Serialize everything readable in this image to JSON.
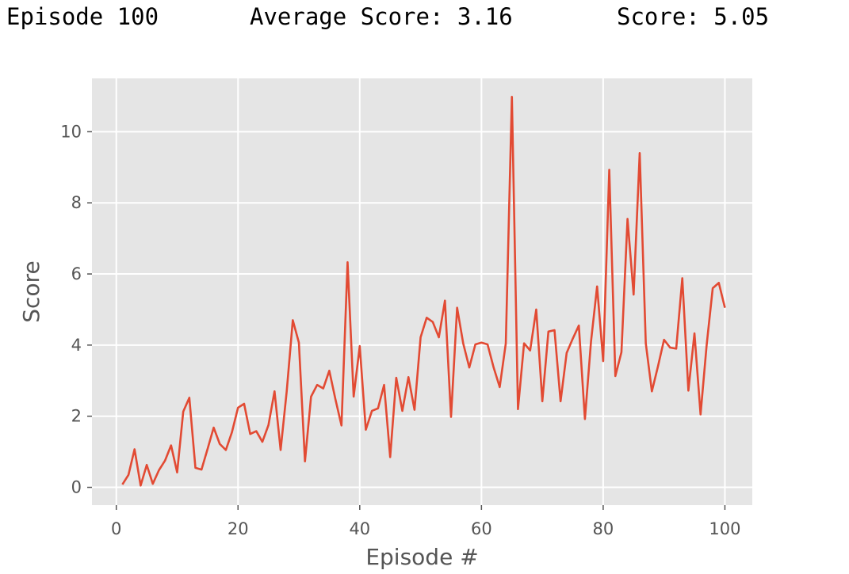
{
  "log": {
    "episode": "Episode 100",
    "average": "Average Score: 3.16",
    "score": "Score: 5.05"
  },
  "chart_data": {
    "type": "line",
    "title": "",
    "xlabel": "Episode #",
    "ylabel": "Score",
    "xlim": [
      -4,
      104.5
    ],
    "ylim": [
      -0.5,
      11.5
    ],
    "xticks": [
      0,
      20,
      40,
      60,
      80,
      100
    ],
    "yticks": [
      0,
      2,
      4,
      6,
      8,
      10
    ],
    "grid": true,
    "line_color": "#E24A33",
    "background": "#E5E5E5",
    "series": [
      {
        "x": [
          1,
          2,
          3,
          4,
          5,
          6,
          7,
          8,
          9,
          10,
          11,
          12,
          13,
          14,
          15,
          16,
          17,
          18,
          19,
          20,
          21,
          22,
          23,
          24,
          25,
          26,
          27,
          28,
          29,
          30,
          31,
          32,
          33,
          34,
          35,
          36,
          37,
          38,
          39,
          40,
          41,
          42,
          43,
          44,
          45,
          46,
          47,
          48,
          49,
          50,
          51,
          52,
          53,
          54,
          55,
          56,
          57,
          58,
          59,
          60,
          61,
          62,
          63,
          64,
          65,
          66,
          67,
          68,
          69,
          70,
          71,
          72,
          73,
          74,
          75,
          76,
          77,
          78,
          79,
          80,
          81,
          82,
          83,
          84,
          85,
          86,
          87,
          88,
          89,
          90,
          91,
          92,
          93,
          94,
          95,
          96,
          97,
          98,
          99,
          100
        ],
        "values": [
          0.08,
          0.35,
          1.07,
          0.05,
          0.63,
          0.1,
          0.48,
          0.75,
          1.18,
          0.42,
          2.13,
          2.52,
          0.55,
          0.5,
          1.08,
          1.68,
          1.22,
          1.05,
          1.55,
          2.24,
          2.35,
          1.5,
          1.58,
          1.28,
          1.75,
          2.7,
          1.05,
          2.7,
          4.7,
          4.07,
          0.73,
          2.55,
          2.88,
          2.78,
          3.28,
          2.48,
          1.74,
          6.33,
          2.55,
          3.97,
          1.62,
          2.15,
          2.22,
          2.88,
          0.85,
          3.08,
          2.15,
          3.1,
          2.18,
          4.22,
          4.77,
          4.65,
          4.22,
          5.25,
          1.98,
          5.05,
          4.05,
          3.37,
          4.02,
          4.07,
          4.02,
          3.37,
          2.82,
          4.05,
          10.98,
          2.2,
          4.05,
          3.85,
          5.0,
          2.42,
          4.38,
          4.42,
          2.42,
          3.78,
          4.18,
          4.55,
          1.92,
          4.1,
          5.65,
          3.55,
          8.93,
          3.13,
          3.8,
          7.55,
          5.42,
          9.4,
          4.05,
          2.7,
          3.4,
          4.15,
          3.93,
          3.9,
          5.88,
          2.72,
          4.33,
          2.05,
          4.0,
          5.6,
          5.75,
          5.05
        ]
      }
    ]
  }
}
